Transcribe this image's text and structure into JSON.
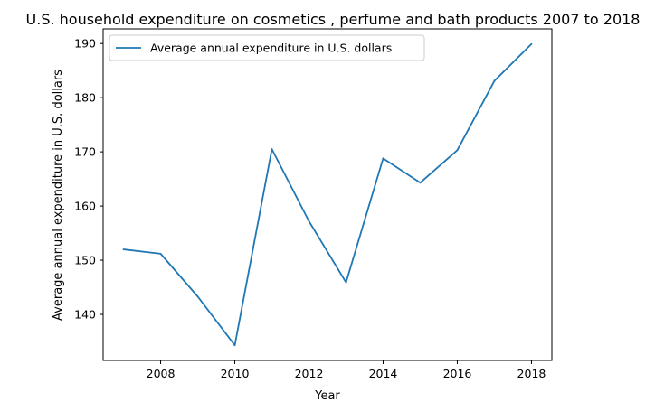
{
  "chart_data": {
    "type": "line",
    "title": "U.S. household expenditure on cosmetics , perfume and bath products 2007 to 2018",
    "xlabel": "Year",
    "ylabel": "Average annual expenditure in U.S. dollars",
    "x": [
      2007,
      2008,
      2009,
      2010,
      2011,
      2012,
      2013,
      2014,
      2015,
      2016,
      2017,
      2018
    ],
    "series": [
      {
        "name": "Average annual expenditure in U.S. dollars",
        "values": [
          152.0,
          151.2,
          143.3,
          134.3,
          170.5,
          157.2,
          145.9,
          168.8,
          164.3,
          170.3,
          183.1,
          189.9
        ],
        "color": "#1f77b4"
      }
    ],
    "xlim": [
      2006.45,
      2018.55
    ],
    "ylim": [
      131.5,
      192.7
    ],
    "xticks": [
      2008,
      2010,
      2012,
      2014,
      2016,
      2018
    ],
    "yticks": [
      140,
      150,
      160,
      170,
      180,
      190
    ],
    "grid": false,
    "legend_position": "top-left"
  }
}
